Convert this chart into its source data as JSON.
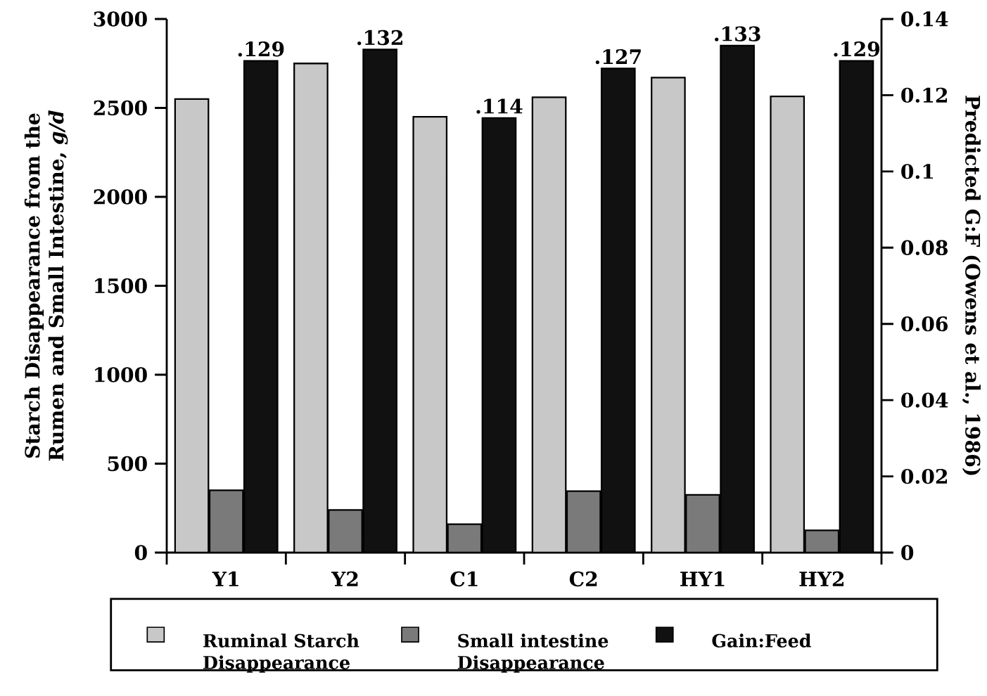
{
  "chart_data": {
    "type": "bar",
    "categories": [
      "Y1",
      "Y2",
      "C1",
      "C2",
      "HY1",
      "HY2"
    ],
    "ylabel": "Starch Disappearance from the Rumen and Small Intestine, *g/d*",
    "y2label": "Predicted G:F (Owens et al., 1986)",
    "ylim": [
      0,
      3000
    ],
    "yticks": [
      0,
      500,
      1000,
      1500,
      2000,
      2500,
      3000
    ],
    "y2lim": [
      0,
      0.14
    ],
    "y2ticks": [
      0,
      0.02,
      0.04,
      0.06,
      0.08,
      0.1,
      0.12,
      0.14
    ],
    "legend": "bottom",
    "grid": false,
    "series": [
      {
        "name": "Ruminal Starch Disappearance",
        "color": "#c8c8c8",
        "values": [
          2550,
          2750,
          2450,
          2560,
          2670,
          2565
        ]
      },
      {
        "name": "Small intestine Disappearance",
        "color": "#7a7a7a",
        "values": [
          350,
          240,
          160,
          345,
          325,
          125
        ]
      },
      {
        "name": "Gain:Feed",
        "color": "#111111",
        "axis": "y2",
        "values": [
          0.129,
          0.132,
          0.114,
          0.127,
          0.133,
          0.129
        ],
        "value_labels": [
          ".129",
          ".132",
          ".114",
          ".127",
          ".133",
          ".129"
        ]
      }
    ]
  }
}
